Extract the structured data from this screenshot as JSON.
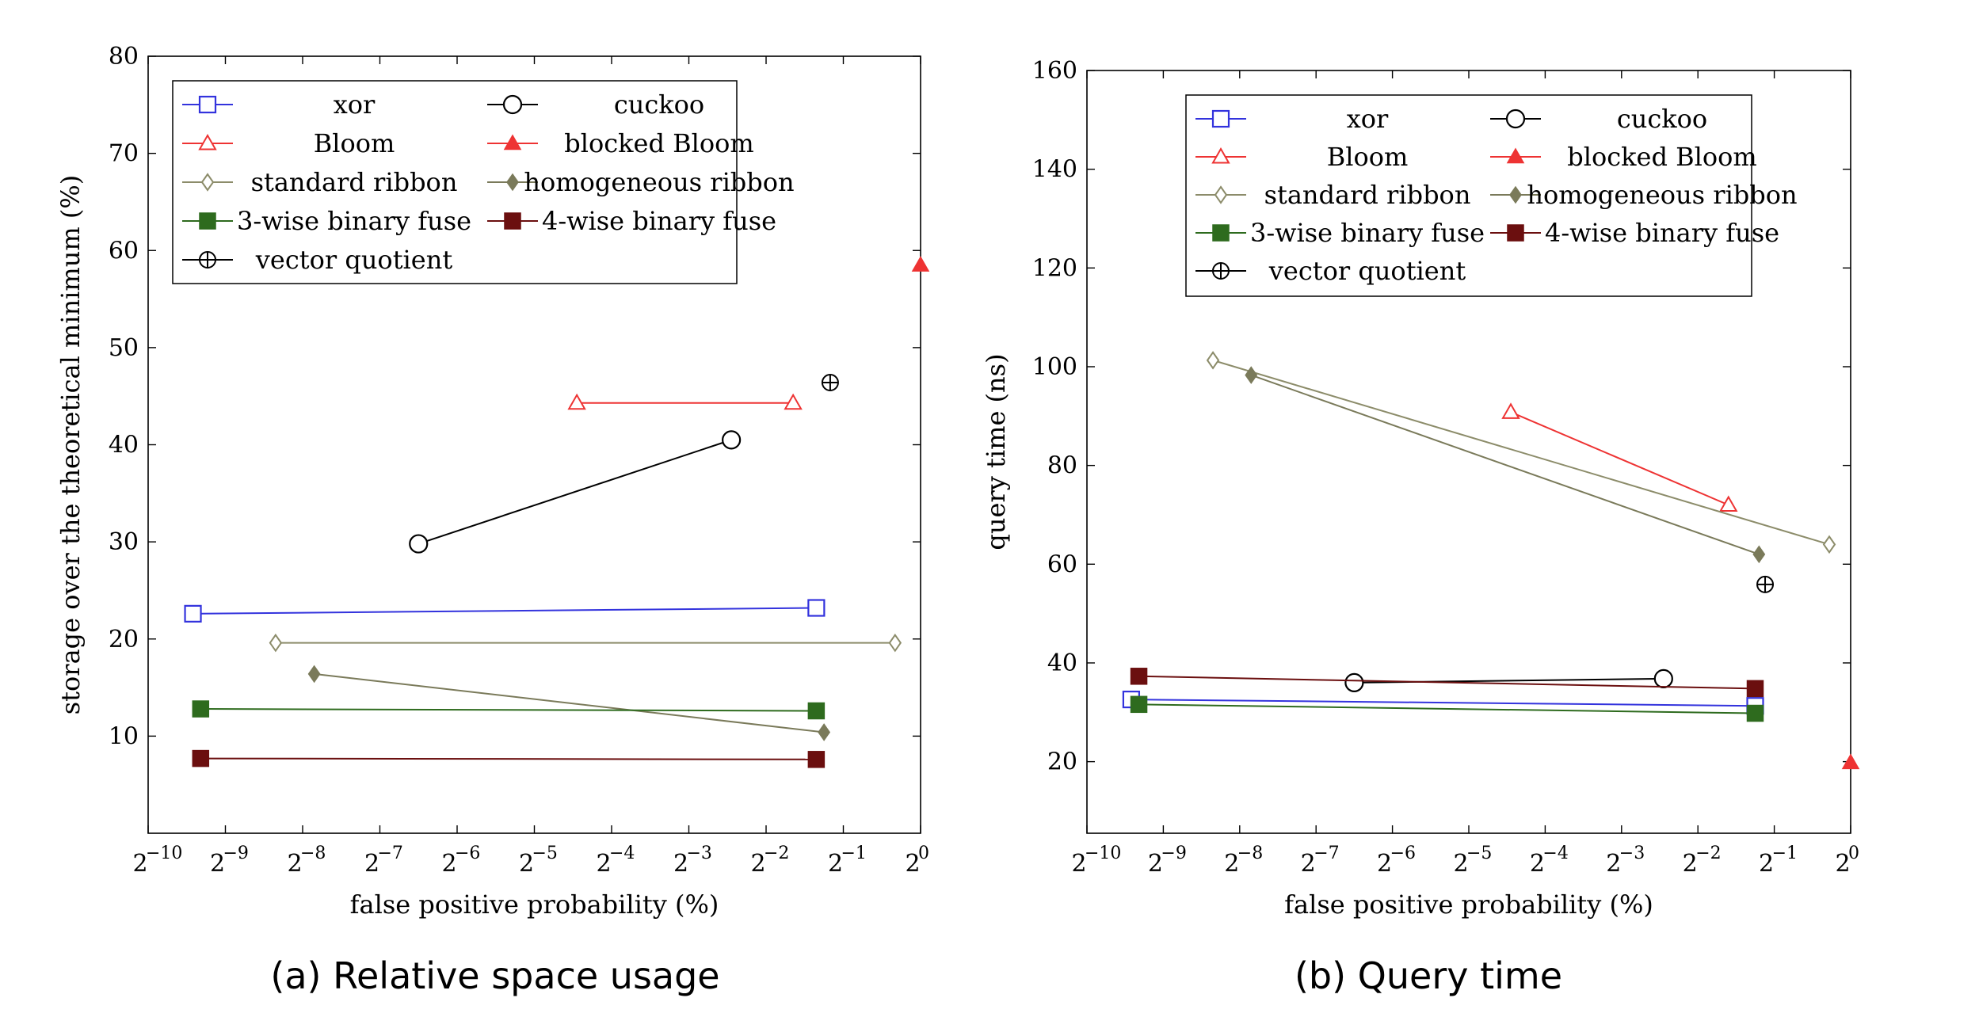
{
  "chart_data": [
    {
      "type": "line",
      "caption": "(a) Relative space usage",
      "xlabel": "false positive probability (%)",
      "ylabel": "storage over the theoretical minimum (%)",
      "xscale": "log2",
      "xlim": [
        -10,
        0
      ],
      "ylim": [
        0,
        80
      ],
      "xticks": [
        -10,
        -9,
        -8,
        -7,
        -6,
        -5,
        -4,
        -3,
        -2,
        -1,
        0
      ],
      "xtick_labels": [
        "2",
        "2",
        "2",
        "2",
        "2",
        "2",
        "2",
        "2",
        "2",
        "2",
        "2"
      ],
      "xtick_exponents": [
        "−10",
        "−9",
        "−8",
        "−7",
        "−6",
        "−5",
        "−4",
        "−3",
        "−2",
        "−1",
        "0"
      ],
      "yticks": [
        10,
        20,
        30,
        40,
        50,
        60,
        70,
        80
      ],
      "ytick_labels": [
        "10",
        "20",
        "30",
        "40",
        "50",
        "60",
        "70",
        "80"
      ],
      "legend_position": "top-left",
      "series": [
        {
          "name": "xor",
          "color": "#3333dd",
          "marker": "square-open",
          "x": [
            -9.42,
            -1.35
          ],
          "y": [
            22.6,
            23.2
          ]
        },
        {
          "name": "cuckoo",
          "color": "#000000",
          "marker": "circle-open",
          "x": [
            -6.5,
            -2.45
          ],
          "y": [
            29.8,
            40.5
          ]
        },
        {
          "name": "Bloom",
          "color": "#ee3333",
          "marker": "triangle-open",
          "x": [
            -4.45,
            -1.65
          ],
          "y": [
            44.3,
            44.3
          ]
        },
        {
          "name": "blocked Bloom",
          "color": "#ee3333",
          "marker": "triangle-filled",
          "x": [
            0.0
          ],
          "y": [
            58.5
          ]
        },
        {
          "name": "standard ribbon",
          "color": "#8c8c6a",
          "marker": "diamond-open",
          "x": [
            -8.35,
            -0.33
          ],
          "y": [
            19.6,
            19.6
          ]
        },
        {
          "name": "homogeneous ribbon",
          "color": "#7a7a5a",
          "marker": "diamond-filled",
          "x": [
            -7.85,
            -1.25
          ],
          "y": [
            16.4,
            10.4
          ]
        },
        {
          "name": "3-wise binary fuse",
          "color": "#2e6b1e",
          "marker": "square-filled",
          "x": [
            -9.32,
            -1.35
          ],
          "y": [
            12.8,
            12.6
          ]
        },
        {
          "name": "4-wise binary fuse",
          "color": "#6b0f0f",
          "marker": "square-filled",
          "x": [
            -9.32,
            -1.35
          ],
          "y": [
            7.7,
            7.6
          ]
        },
        {
          "name": "vector quotient",
          "color": "#000000",
          "marker": "circle-plus",
          "x": [
            -1.17
          ],
          "y": [
            46.4
          ]
        }
      ]
    },
    {
      "type": "line",
      "caption": "(b) Query time",
      "xlabel": "false positive probability (%)",
      "ylabel": "query time (ns)",
      "xscale": "log2",
      "xlim": [
        -10,
        0
      ],
      "ylim": [
        5.5,
        160
      ],
      "xticks": [
        -10,
        -9,
        -8,
        -7,
        -6,
        -5,
        -4,
        -3,
        -2,
        -1,
        0
      ],
      "xtick_labels": [
        "2",
        "2",
        "2",
        "2",
        "2",
        "2",
        "2",
        "2",
        "2",
        "2",
        "2"
      ],
      "xtick_exponents": [
        "−10",
        "−9",
        "−8",
        "−7",
        "−6",
        "−5",
        "−4",
        "−3",
        "−2",
        "−1",
        "0"
      ],
      "yticks": [
        20,
        40,
        60,
        80,
        100,
        120,
        140,
        160
      ],
      "ytick_labels": [
        "20",
        "40",
        "60",
        "80",
        "100",
        "120",
        "140",
        "160"
      ],
      "legend_position": "top-left",
      "series": [
        {
          "name": "xor",
          "color": "#3333dd",
          "marker": "square-open",
          "x": [
            -9.42,
            -1.25
          ],
          "y": [
            32.6,
            31.3
          ]
        },
        {
          "name": "cuckoo",
          "color": "#000000",
          "marker": "circle-open",
          "x": [
            -6.5,
            -2.45
          ],
          "y": [
            36.0,
            36.8
          ]
        },
        {
          "name": "Bloom",
          "color": "#ee3333",
          "marker": "triangle-open",
          "x": [
            -4.45,
            -1.6
          ],
          "y": [
            90.8,
            72.0
          ]
        },
        {
          "name": "blocked Bloom",
          "color": "#ee3333",
          "marker": "triangle-filled",
          "x": [
            0.0
          ],
          "y": [
            19.8
          ]
        },
        {
          "name": "standard ribbon",
          "color": "#8c8c6a",
          "marker": "diamond-open",
          "x": [
            -8.35,
            -0.28
          ],
          "y": [
            101.3,
            64.0
          ]
        },
        {
          "name": "homogeneous ribbon",
          "color": "#7a7a5a",
          "marker": "diamond-filled",
          "x": [
            -7.85,
            -1.2
          ],
          "y": [
            98.3,
            62.0
          ]
        },
        {
          "name": "3-wise binary fuse",
          "color": "#2e6b1e",
          "marker": "square-filled",
          "x": [
            -9.32,
            -1.25
          ],
          "y": [
            31.6,
            29.8
          ]
        },
        {
          "name": "4-wise binary fuse",
          "color": "#6b0f0f",
          "marker": "square-filled",
          "x": [
            -9.32,
            -1.25
          ],
          "y": [
            37.3,
            34.8
          ]
        },
        {
          "name": "vector quotient",
          "color": "#000000",
          "marker": "circle-plus",
          "x": [
            -1.12
          ],
          "y": [
            55.9
          ]
        }
      ]
    }
  ]
}
